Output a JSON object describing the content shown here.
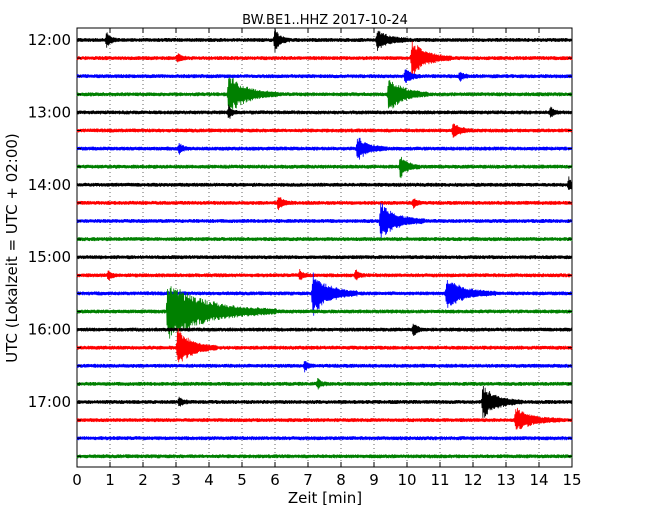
{
  "chart_data": {
    "type": "line",
    "title": "BW.BE1..HHZ 2017-10-24",
    "xlabel": "Zeit  [min]",
    "ylabel": "UTC (Lokalzeit = UTC + 02:00)",
    "xlim": [
      0,
      15
    ],
    "x_ticks": [
      0,
      1,
      2,
      3,
      4,
      5,
      6,
      7,
      8,
      9,
      10,
      11,
      12,
      13,
      14,
      15
    ],
    "grid": "vertical dotted",
    "trace_colors": [
      "#000000",
      "#ff0000",
      "#0000ff",
      "#008000"
    ],
    "y_tick_labels": [
      "12:00",
      "13:00",
      "14:00",
      "15:00",
      "16:00",
      "17:00"
    ],
    "traces": [
      {
        "start": "12:00",
        "events": [
          {
            "x": 0.9,
            "amp": 0.5,
            "dur": 0.1
          },
          {
            "x": 6.0,
            "amp": 0.7,
            "dur": 0.15
          },
          {
            "x": 9.1,
            "amp": 0.6,
            "dur": 0.35
          }
        ]
      },
      {
        "start": "12:15",
        "events": [
          {
            "x": 3.05,
            "amp": 0.3,
            "dur": 0.1
          },
          {
            "x": 10.15,
            "amp": 1.1,
            "dur": 0.4
          }
        ]
      },
      {
        "start": "12:30",
        "events": [
          {
            "x": 9.95,
            "amp": 0.5,
            "dur": 0.15
          },
          {
            "x": 11.6,
            "amp": 0.3,
            "dur": 0.1
          }
        ]
      },
      {
        "start": "12:45",
        "events": [
          {
            "x": 4.6,
            "amp": 1.2,
            "dur": 0.5
          },
          {
            "x": 9.45,
            "amp": 1.1,
            "dur": 0.4
          }
        ]
      },
      {
        "start": "13:00",
        "events": [
          {
            "x": 4.6,
            "amp": 0.4,
            "dur": 0.1
          },
          {
            "x": 14.35,
            "amp": 0.3,
            "dur": 0.1
          }
        ]
      },
      {
        "start": "13:15",
        "events": [
          {
            "x": 11.4,
            "amp": 0.4,
            "dur": 0.2
          }
        ]
      },
      {
        "start": "13:30",
        "events": [
          {
            "x": 3.1,
            "amp": 0.3,
            "dur": 0.1
          },
          {
            "x": 8.5,
            "amp": 0.7,
            "dur": 0.3
          }
        ]
      },
      {
        "start": "13:45",
        "events": [
          {
            "x": 9.8,
            "amp": 0.7,
            "dur": 0.2
          }
        ]
      },
      {
        "start": "14:00",
        "events": [
          {
            "x": 14.9,
            "amp": 0.45,
            "dur": 0.1
          }
        ]
      },
      {
        "start": "14:15",
        "events": [
          {
            "x": 6.1,
            "amp": 0.4,
            "dur": 0.15
          },
          {
            "x": 10.2,
            "amp": 0.3,
            "dur": 0.1
          }
        ]
      },
      {
        "start": "14:30",
        "events": [
          {
            "x": 9.2,
            "amp": 1.1,
            "dur": 0.45
          }
        ]
      },
      {
        "start": "14:45",
        "events": []
      },
      {
        "start": "15:00",
        "events": []
      },
      {
        "start": "15:15",
        "events": [
          {
            "x": 0.95,
            "amp": 0.3,
            "dur": 0.1
          },
          {
            "x": 6.75,
            "amp": 0.3,
            "dur": 0.1
          },
          {
            "x": 8.45,
            "amp": 0.3,
            "dur": 0.1
          }
        ]
      },
      {
        "start": "15:30",
        "events": [
          {
            "x": 7.15,
            "amp": 1.4,
            "dur": 0.45
          },
          {
            "x": 11.2,
            "amp": 0.9,
            "dur": 0.5
          }
        ]
      },
      {
        "start": "15:45",
        "events": [
          {
            "x": 2.75,
            "amp": 1.8,
            "dur": 1.1
          }
        ]
      },
      {
        "start": "16:00",
        "events": [
          {
            "x": 10.2,
            "amp": 0.45,
            "dur": 0.1
          }
        ]
      },
      {
        "start": "16:15",
        "events": [
          {
            "x": 3.05,
            "amp": 1.2,
            "dur": 0.4
          }
        ]
      },
      {
        "start": "16:30",
        "events": [
          {
            "x": 6.9,
            "amp": 0.3,
            "dur": 0.1
          }
        ]
      },
      {
        "start": "16:45",
        "events": [
          {
            "x": 7.3,
            "amp": 0.3,
            "dur": 0.1
          }
        ]
      },
      {
        "start": "17:00",
        "events": [
          {
            "x": 3.1,
            "amp": 0.3,
            "dur": 0.1
          },
          {
            "x": 12.3,
            "amp": 1.0,
            "dur": 0.4
          }
        ]
      },
      {
        "start": "17:15",
        "events": [
          {
            "x": 13.3,
            "amp": 0.7,
            "dur": 0.45
          }
        ]
      },
      {
        "start": "17:30",
        "events": []
      },
      {
        "start": "17:45",
        "events": []
      }
    ]
  }
}
